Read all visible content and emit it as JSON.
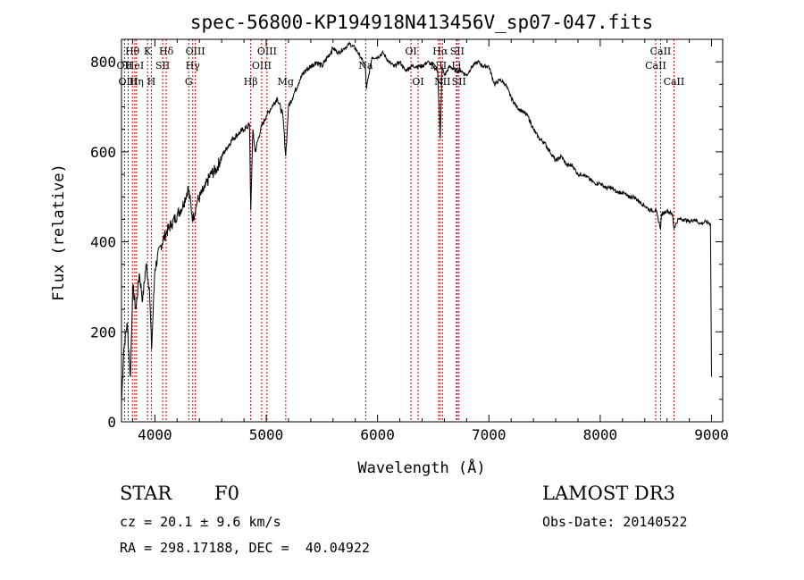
{
  "chart_data": {
    "type": "line",
    "title": "spec-56800-KP194918N413456V_sp07-047.fits",
    "xlabel": "Wavelength (Å)",
    "ylabel": "Flux (relative)",
    "xlim": [
      3700,
      9100
    ],
    "ylim": [
      0,
      850
    ],
    "xticks": [
      4000,
      5000,
      6000,
      7000,
      8000,
      9000
    ],
    "yticks": [
      0,
      200,
      400,
      600,
      800
    ],
    "grid": false,
    "series": [
      {
        "name": "spectrum",
        "x": [
          3700,
          3720,
          3750,
          3780,
          3800,
          3830,
          3860,
          3890,
          3920,
          3950,
          3970,
          4000,
          4050,
          4100,
          4150,
          4200,
          4250,
          4300,
          4340,
          4380,
          4450,
          4500,
          4550,
          4600,
          4650,
          4700,
          4750,
          4800,
          4850,
          4861,
          4880,
          4900,
          4950,
          5000,
          5050,
          5100,
          5150,
          5175,
          5200,
          5250,
          5300,
          5350,
          5400,
          5450,
          5500,
          5550,
          5600,
          5650,
          5700,
          5750,
          5800,
          5850,
          5890,
          5900,
          5950,
          6000,
          6050,
          6100,
          6150,
          6200,
          6250,
          6300,
          6350,
          6400,
          6450,
          6500,
          6540,
          6563,
          6580,
          6600,
          6650,
          6700,
          6750,
          6800,
          6850,
          6900,
          6950,
          7000,
          7050,
          7100,
          7150,
          7200,
          7250,
          7300,
          7350,
          7400,
          7450,
          7500,
          7550,
          7600,
          7650,
          7700,
          7750,
          7800,
          7850,
          7900,
          7950,
          8000,
          8050,
          8100,
          8150,
          8200,
          8250,
          8300,
          8350,
          8400,
          8450,
          8500,
          8542,
          8550,
          8600,
          8650,
          8662,
          8700,
          8750,
          8800,
          8850,
          8900,
          8950,
          8990,
          9000
        ],
        "y": [
          40,
          160,
          220,
          100,
          300,
          250,
          330,
          270,
          350,
          300,
          160,
          340,
          390,
          420,
          440,
          460,
          480,
          520,
          450,
          490,
          520,
          550,
          560,
          590,
          610,
          630,
          640,
          650,
          660,
          470,
          650,
          600,
          650,
          680,
          700,
          720,
          680,
          590,
          700,
          730,
          760,
          780,
          790,
          800,
          790,
          810,
          830,
          820,
          830,
          840,
          830,
          810,
          790,
          740,
          810,
          810,
          820,
          800,
          790,
          800,
          780,
          790,
          790,
          790,
          800,
          790,
          780,
          630,
          790,
          770,
          790,
          780,
          780,
          770,
          790,
          800,
          790,
          790,
          750,
          760,
          750,
          720,
          700,
          690,
          680,
          650,
          630,
          620,
          600,
          580,
          590,
          570,
          570,
          550,
          550,
          540,
          530,
          530,
          520,
          520,
          510,
          510,
          500,
          500,
          490,
          480,
          470,
          470,
          430,
          460,
          470,
          460,
          430,
          450,
          450,
          445,
          450,
          440,
          445,
          440,
          100
        ]
      }
    ],
    "line_markers": [
      {
        "label": "Hθ",
        "wavelength": 3798,
        "row": 1
      },
      {
        "label": "OII",
        "wavelength": 3727,
        "row": 2
      },
      {
        "label": "HeI",
        "wavelength": 3820,
        "row": 2
      },
      {
        "label": "OIII",
        "wavelength": 3760,
        "row": 3
      },
      {
        "label": "Hη",
        "wavelength": 3835,
        "row": 3
      },
      {
        "label": "K",
        "wavelength": 3934,
        "row": 1
      },
      {
        "label": "SII",
        "wavelength": 4070,
        "row": 2
      },
      {
        "label": "H",
        "wavelength": 3968,
        "row": 3
      },
      {
        "label": "Hδ",
        "wavelength": 4102,
        "row": 1
      },
      {
        "label": "OIII",
        "wavelength": 4363,
        "row": 1
      },
      {
        "label": "Hγ",
        "wavelength": 4340,
        "row": 2
      },
      {
        "label": "G",
        "wavelength": 4304,
        "row": 3
      },
      {
        "label": "Hβ",
        "wavelength": 4861,
        "row": 3
      },
      {
        "label": "OIII",
        "wavelength": 5007,
        "row": 1
      },
      {
        "label": "OIII",
        "wavelength": 4959,
        "row": 2
      },
      {
        "label": "Mg",
        "wavelength": 5175,
        "row": 3
      },
      {
        "label": "Na",
        "wavelength": 5893,
        "row": 2
      },
      {
        "label": "OI",
        "wavelength": 6300,
        "row": 1
      },
      {
        "label": "OI",
        "wavelength": 6364,
        "row": 3
      },
      {
        "label": "Hα",
        "wavelength": 6563,
        "row": 1
      },
      {
        "label": "SII",
        "wavelength": 6716,
        "row": 1
      },
      {
        "label": "NII",
        "wavelength": 6548,
        "row": 2
      },
      {
        "label": "Li",
        "wavelength": 6708,
        "row": 2
      },
      {
        "label": "NII",
        "wavelength": 6583,
        "row": 3
      },
      {
        "label": "SII",
        "wavelength": 6731,
        "row": 3
      },
      {
        "label": "CaII",
        "wavelength": 8542,
        "row": 1
      },
      {
        "label": "CaII",
        "wavelength": 8498,
        "row": 2
      },
      {
        "label": "CaII",
        "wavelength": 8662,
        "row": 3
      }
    ]
  },
  "info": {
    "object_class": "STAR",
    "subclass": "F0",
    "survey": "LAMOST DR3",
    "redshift": "cz = 20.1 ± 9.6 km/s",
    "obs_date": "Obs-Date: 20140522",
    "coords": "RA = 298.17188, DEC =  40.04922"
  },
  "colors": {
    "spectrum": "#000000",
    "marker_line": "#cc0000"
  }
}
